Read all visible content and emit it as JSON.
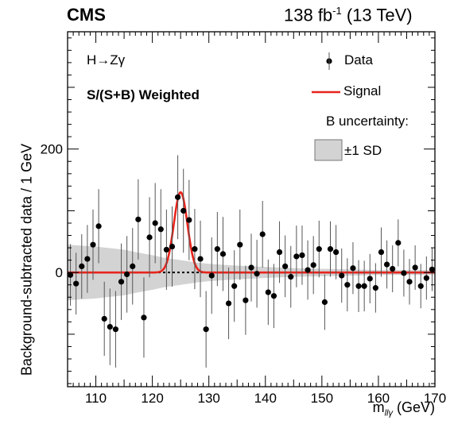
{
  "header": {
    "experiment": "CMS",
    "luminosity": "138 fb",
    "luminosity_exp": "-1",
    "energy": "(13 TeV)"
  },
  "annotations": {
    "process": "H→Zγ",
    "weighting": "S/(S+B) Weighted"
  },
  "legend": {
    "data": "Data",
    "signal": "Signal",
    "uncertainty_title": "B uncertainty:",
    "uncertainty_band": "±1 SD"
  },
  "colors": {
    "signal": "#e8241c",
    "band": "#d3d3d3",
    "data": "#000000"
  },
  "chart_data": {
    "type": "scatter",
    "ylabel": "Background-subtracted data / 1 GeV",
    "xlabel_main": "m",
    "xlabel_sub": "llγ",
    "xlabel_unit": " (GeV)",
    "xlim": [
      105,
      170
    ],
    "ylim": [
      -185,
      390
    ],
    "xticks": [
      110,
      120,
      130,
      140,
      150,
      160,
      170
    ],
    "yticks": [
      0,
      200
    ],
    "grid": false,
    "legend_position": "top-right",
    "series": [
      {
        "name": "Data",
        "x": [
          105.5,
          106.5,
          107.5,
          108.5,
          109.5,
          110.5,
          111.5,
          112.5,
          113.5,
          114.5,
          115.5,
          116.5,
          117.5,
          118.5,
          119.5,
          120.5,
          121.5,
          122.5,
          123.5,
          124.5,
          125.5,
          126.5,
          127.5,
          128.5,
          129.5,
          130.5,
          131.5,
          132.5,
          133.5,
          134.5,
          135.5,
          136.5,
          137.5,
          138.5,
          139.5,
          140.5,
          141.5,
          142.5,
          143.5,
          144.5,
          145.5,
          146.5,
          147.5,
          148.5,
          149.5,
          150.5,
          151.5,
          152.5,
          153.5,
          154.5,
          155.5,
          156.5,
          157.5,
          158.5,
          159.5,
          160.5,
          161.5,
          162.5,
          163.5,
          164.5,
          165.5,
          166.5,
          167.5,
          168.5,
          169.5
        ],
        "y": [
          -4,
          -18,
          10,
          22,
          45,
          75,
          -75,
          -88,
          -92,
          -15,
          -3,
          10,
          86,
          -73,
          57,
          80,
          70,
          37,
          42,
          122,
          100,
          85,
          38,
          22,
          -92,
          -5,
          38,
          30,
          -50,
          -22,
          45,
          -45,
          8,
          -2,
          62,
          -32,
          -38,
          33,
          10,
          -7,
          26,
          28,
          4,
          12,
          38,
          -48,
          38,
          33,
          -5,
          -20,
          7,
          -22,
          -22,
          -10,
          -25,
          33,
          13,
          6,
          48,
          -1,
          -15,
          8,
          -22,
          -9,
          5
        ],
        "yerr": [
          50,
          50,
          52,
          55,
          57,
          60,
          60,
          62,
          62,
          62,
          62,
          62,
          65,
          65,
          65,
          65,
          65,
          65,
          65,
          68,
          68,
          65,
          65,
          62,
          62,
          62,
          60,
          60,
          58,
          58,
          57,
          56,
          55,
          55,
          54,
          53,
          52,
          50,
          50,
          50,
          50,
          48,
          48,
          47,
          46,
          45,
          45,
          44,
          44,
          43,
          42,
          42,
          41,
          40,
          40,
          40,
          39,
          38,
          38,
          38,
          37,
          36,
          36,
          35,
          35
        ]
      },
      {
        "name": "Signal",
        "type": "line",
        "peak_x": 125.0,
        "peak_y": 130,
        "width": 1.2
      },
      {
        "name": "B uncertainty ±1 SD",
        "type": "band",
        "x": [
          105,
          110,
          112,
          115,
          117,
          120,
          122,
          125,
          128,
          130,
          135,
          140,
          145,
          150,
          155,
          160,
          165,
          170
        ],
        "half_width": [
          45,
          42,
          40,
          37,
          33,
          28,
          24,
          20,
          16,
          14,
          11,
          9,
          7,
          6,
          5,
          4,
          4,
          4
        ]
      }
    ]
  }
}
